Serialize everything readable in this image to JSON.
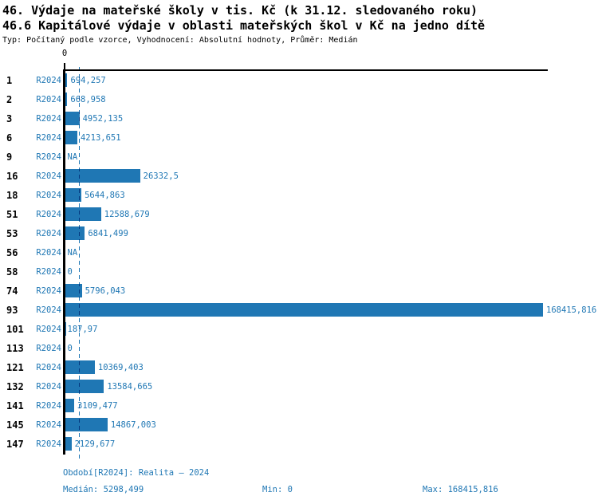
{
  "header": {
    "title_line1": "46. Výdaje na mateřské školy v tis. Kč (k 31.12. sledovaného roku)",
    "title_line2": "46.6 Kapitálové výdaje v oblasti mateřských škol v Kč na jedno dítě",
    "subtitle": "Typ: Počítaný podle vzorce, Vyhodnocení: Absolutní hodnoty, Průměr: Medián"
  },
  "colors": {
    "accent": "#1f77b4",
    "axis": "#000000",
    "background": "#ffffff"
  },
  "chart_data": {
    "type": "bar",
    "orientation": "horizontal",
    "title": "46.6 Kapitálové výdaje v oblasti mateřských škol v Kč na jedno dítě",
    "xlabel": "",
    "ylabel": "",
    "xlim": [
      0,
      168415.816
    ],
    "x_tick_labels": [
      "0"
    ],
    "grid": false,
    "legend": null,
    "series_label": "R2024",
    "na_label": "NA",
    "median_value": 5298.499,
    "categories": [
      "1",
      "2",
      "3",
      "6",
      "9",
      "16",
      "18",
      "51",
      "53",
      "56",
      "58",
      "74",
      "93",
      "101",
      "113",
      "121",
      "132",
      "141",
      "145",
      "147"
    ],
    "rows": [
      {
        "category": "1",
        "series": "R2024",
        "value": 694.257,
        "value_label": "694,257"
      },
      {
        "category": "2",
        "series": "R2024",
        "value": 668.958,
        "value_label": "668,958"
      },
      {
        "category": "3",
        "series": "R2024",
        "value": 4952.135,
        "value_label": "4952,135"
      },
      {
        "category": "6",
        "series": "R2024",
        "value": 4213.651,
        "value_label": "4213,651"
      },
      {
        "category": "9",
        "series": "R2024",
        "value": null,
        "value_label": "NA"
      },
      {
        "category": "16",
        "series": "R2024",
        "value": 26332.5,
        "value_label": "26332,5"
      },
      {
        "category": "18",
        "series": "R2024",
        "value": 5644.863,
        "value_label": "5644,863"
      },
      {
        "category": "51",
        "series": "R2024",
        "value": 12588.679,
        "value_label": "12588,679"
      },
      {
        "category": "53",
        "series": "R2024",
        "value": 6841.499,
        "value_label": "6841,499"
      },
      {
        "category": "56",
        "series": "R2024",
        "value": null,
        "value_label": "NA"
      },
      {
        "category": "58",
        "series": "R2024",
        "value": 0,
        "value_label": "0"
      },
      {
        "category": "74",
        "series": "R2024",
        "value": 5796.043,
        "value_label": "5796,043"
      },
      {
        "category": "93",
        "series": "R2024",
        "value": 168415.816,
        "value_label": "168415,816"
      },
      {
        "category": "101",
        "series": "R2024",
        "value": 187.97,
        "value_label": "187,97"
      },
      {
        "category": "113",
        "series": "R2024",
        "value": 0,
        "value_label": "0"
      },
      {
        "category": "121",
        "series": "R2024",
        "value": 10369.403,
        "value_label": "10369,403"
      },
      {
        "category": "132",
        "series": "R2024",
        "value": 13584.665,
        "value_label": "13584,665"
      },
      {
        "category": "141",
        "series": "R2024",
        "value": 3109.477,
        "value_label": "3109,477"
      },
      {
        "category": "145",
        "series": "R2024",
        "value": 14867.003,
        "value_label": "14867,003"
      },
      {
        "category": "147",
        "series": "R2024",
        "value": 2129.677,
        "value_label": "2129,677"
      }
    ]
  },
  "axis": {
    "zero_tick_label": "0"
  },
  "footer": {
    "period": "Období[R2024]: Realita – 2024",
    "median": "Medián: 5298,499",
    "min": "Min: 0",
    "max": "Max: 168415,816"
  }
}
